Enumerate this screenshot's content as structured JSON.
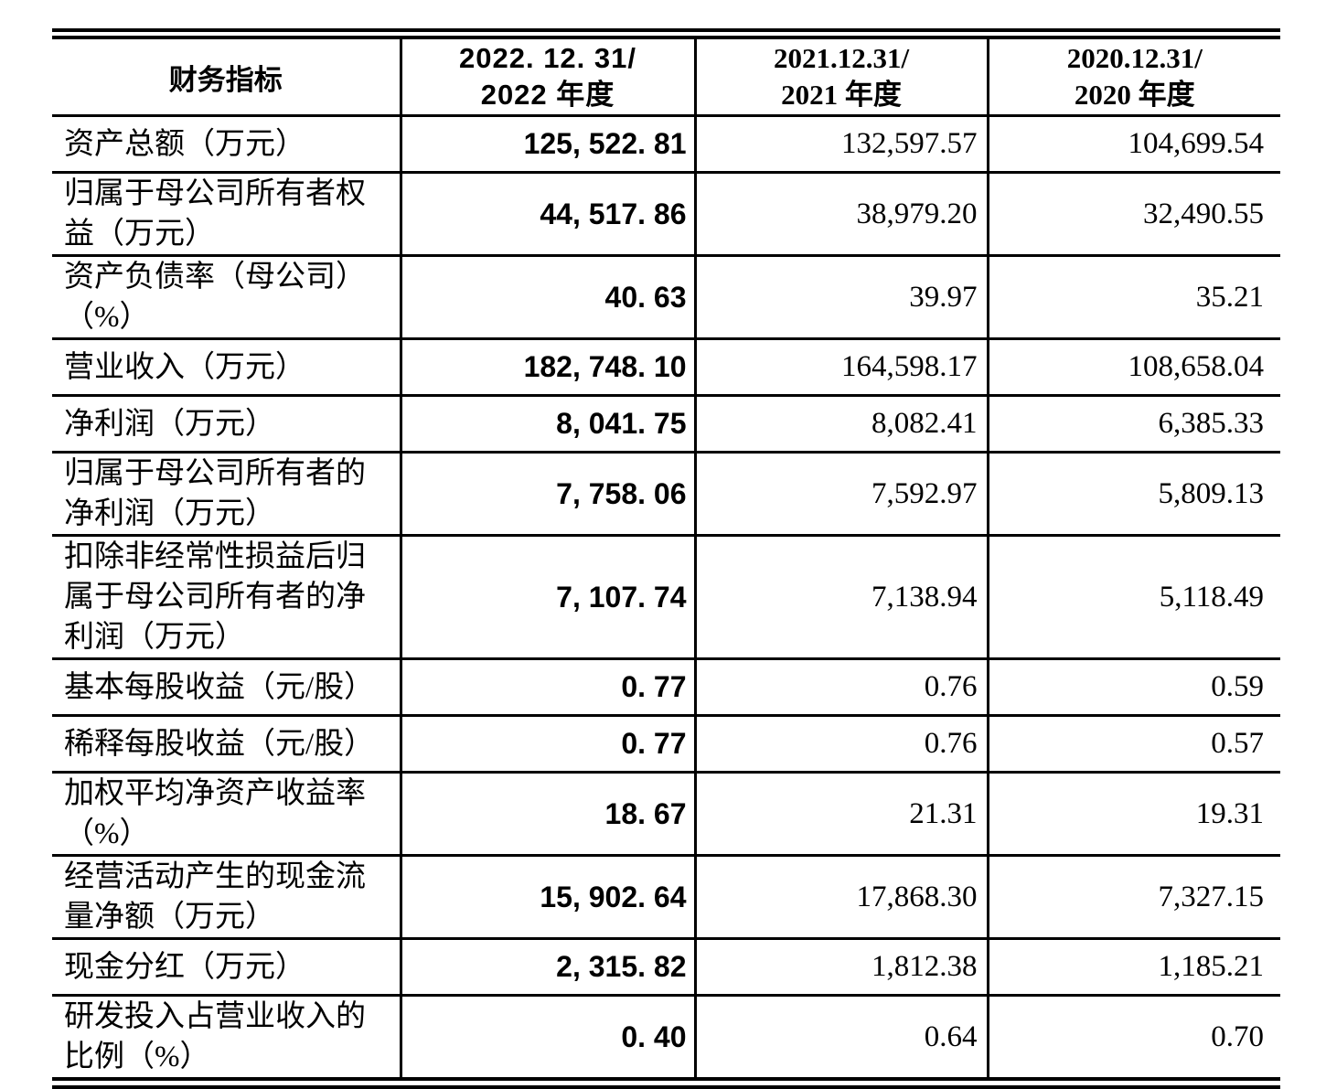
{
  "colors": {
    "text": "#000000",
    "border": "#000000",
    "background": "#ffffff"
  },
  "table": {
    "header": {
      "metric": "财务指标",
      "col2022": {
        "line1": "2022. 12. 31/",
        "line2": "2022 年度"
      },
      "col2021": {
        "line1": "2021.12.31/",
        "line2": "2021 年度"
      },
      "col2020": {
        "line1": "2020.12.31/",
        "line2": "2020 年度"
      }
    },
    "rows": [
      {
        "label_lines": [
          "资产总额（万元）"
        ],
        "v2022": "125, 522. 81",
        "v2021": "132,597.57",
        "v2020": "104,699.54"
      },
      {
        "label_lines": [
          "归属于母公司所有者权",
          "益（万元）"
        ],
        "v2022": "44, 517. 86",
        "v2021": "38,979.20",
        "v2020": "32,490.55"
      },
      {
        "label_lines": [
          "资产负债率（母公司）",
          "（%）"
        ],
        "v2022": "40. 63",
        "v2021": "39.97",
        "v2020": "35.21"
      },
      {
        "label_lines": [
          "营业收入（万元）"
        ],
        "v2022": "182, 748. 10",
        "v2021": "164,598.17",
        "v2020": "108,658.04"
      },
      {
        "label_lines": [
          "净利润（万元）"
        ],
        "v2022": "8, 041. 75",
        "v2021": "8,082.41",
        "v2020": "6,385.33"
      },
      {
        "label_lines": [
          "归属于母公司所有者的",
          "净利润（万元）"
        ],
        "v2022": "7, 758. 06",
        "v2021": "7,592.97",
        "v2020": "5,809.13"
      },
      {
        "label_lines": [
          "扣除非经常性损益后归",
          "属于母公司所有者的净",
          "利润（万元）"
        ],
        "v2022": "7, 107. 74",
        "v2021": "7,138.94",
        "v2020": "5,118.49"
      },
      {
        "label_lines": [
          "基本每股收益（元/股）"
        ],
        "v2022": "0. 77",
        "v2021": "0.76",
        "v2020": "0.59"
      },
      {
        "label_lines": [
          "稀释每股收益（元/股）"
        ],
        "v2022": "0. 77",
        "v2021": "0.76",
        "v2020": "0.57"
      },
      {
        "label_lines": [
          "加权平均净资产收益率",
          "（%）"
        ],
        "v2022": "18. 67",
        "v2021": "21.31",
        "v2020": "19.31"
      },
      {
        "label_lines": [
          "经营活动产生的现金流",
          "量净额（万元）"
        ],
        "v2022": "15, 902. 64",
        "v2021": "17,868.30",
        "v2020": "7,327.15"
      },
      {
        "label_lines": [
          "现金分红（万元）"
        ],
        "v2022": "2, 315. 82",
        "v2021": "1,812.38",
        "v2020": "1,185.21"
      },
      {
        "label_lines": [
          "研发投入占营业收入的",
          "比例（%）"
        ],
        "v2022": "0. 40",
        "v2021": "0.64",
        "v2020": "0.70"
      }
    ]
  }
}
